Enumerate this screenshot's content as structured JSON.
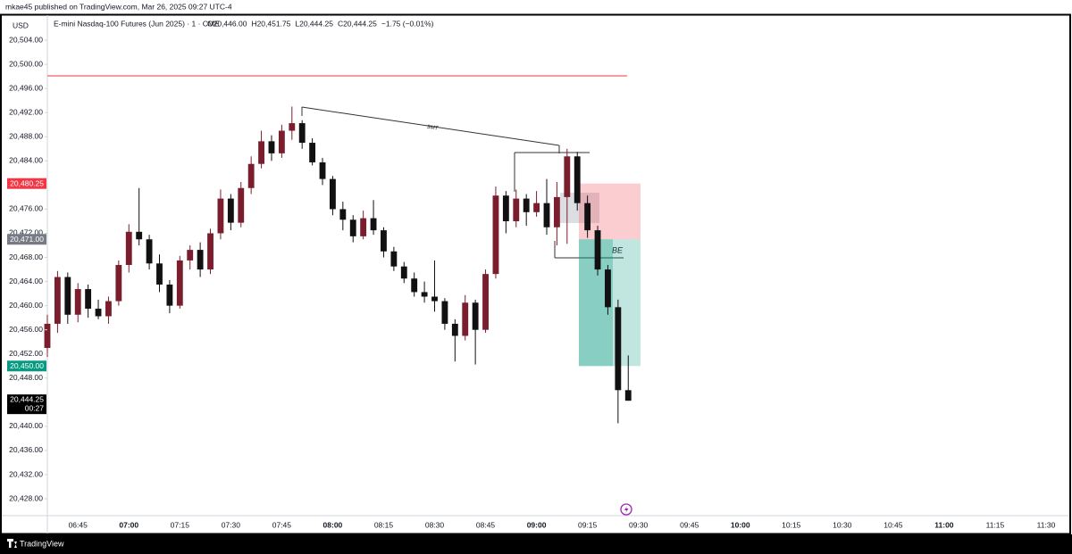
{
  "header": {
    "publisher": "mkae45 published on TradingView.com, Mar 26, 2025 09:27 UTC-4"
  },
  "chart_data": {
    "type": "candlestick",
    "title": "E-mini Nasdaq-100 Futures (Jun 2025) · 1 · CME",
    "legend_values": [
      "O20,446.00",
      "H20,451.75",
      "L20,444.25",
      "C20,444.25",
      "−1.75 (−0.01%)"
    ],
    "currency": "USD",
    "up_color": "#7a1e2e",
    "down_color": "#111111",
    "x": [
      "06:36",
      "06:39",
      "06:42",
      "06:45",
      "06:48",
      "06:51",
      "06:54",
      "06:57",
      "07:00",
      "07:03",
      "07:06",
      "07:09",
      "07:12",
      "07:15",
      "07:18",
      "07:21",
      "07:24",
      "07:27",
      "07:30",
      "07:33",
      "07:36",
      "07:39",
      "07:42",
      "07:45",
      "07:48",
      "07:51",
      "07:54",
      "07:57",
      "08:00",
      "08:03",
      "08:06",
      "08:09",
      "08:12",
      "08:15",
      "08:18",
      "08:21",
      "08:24",
      "08:27",
      "08:30",
      "08:33",
      "08:36",
      "08:39",
      "08:42",
      "08:45",
      "08:48",
      "08:51",
      "08:54",
      "08:57",
      "09:00",
      "09:03",
      "09:06",
      "09:09",
      "09:12",
      "09:15",
      "09:18",
      "09:21",
      "09:24",
      "09:27"
    ],
    "open": [
      20453.0,
      20457.0,
      20464.75,
      20458.5,
      20462.75,
      20459.5,
      20458.25,
      20460.75,
      20466.75,
      20472.25,
      20471.0,
      20467.0,
      20463.5,
      20460.0,
      20467.5,
      20469.25,
      20466.0,
      20472.0,
      20477.75,
      20473.75,
      20479.5,
      20483.5,
      20487.25,
      20485.25,
      20489.0,
      20490.25,
      20487.0,
      20483.75,
      20481.0,
      20476.0,
      20474.25,
      20471.5,
      20474.5,
      20472.5,
      20469.0,
      20466.5,
      20464.5,
      20462.25,
      20461.5,
      20460.75,
      20457.0,
      20455.0,
      20460.5,
      20456.0,
      20465.25,
      20478.25,
      20474.0,
      20477.75,
      20475.5,
      20477.0,
      20473.0,
      20478.0,
      20484.75,
      20477.0,
      20472.5,
      20466.0,
      20459.75,
      20446.0
    ],
    "high": [
      20458.5,
      20465.75,
      20465.5,
      20463.75,
      20463.5,
      20461.0,
      20461.5,
      20467.5,
      20473.5,
      20479.5,
      20471.75,
      20468.5,
      20464.25,
      20468.25,
      20470.0,
      20470.5,
      20472.75,
      20479.25,
      20478.5,
      20480.5,
      20484.75,
      20489.0,
      20488.25,
      20490.0,
      20493.0,
      20490.75,
      20487.75,
      20484.5,
      20481.5,
      20477.25,
      20475.0,
      20475.75,
      20477.5,
      20473.0,
      20469.75,
      20467.25,
      20465.5,
      20464.0,
      20467.5,
      20461.25,
      20457.75,
      20461.75,
      20461.0,
      20466.0,
      20479.75,
      20479.0,
      20479.25,
      20478.5,
      20479.0,
      20481.0,
      20480.5,
      20486.0,
      20485.5,
      20478.25,
      20473.25,
      20466.75,
      20461.0,
      20451.75
    ],
    "low": [
      20451.5,
      20455.5,
      20457.0,
      20457.25,
      20458.0,
      20457.75,
      20457.0,
      20460.0,
      20465.5,
      20470.0,
      20466.0,
      20462.25,
      20458.75,
      20459.5,
      20466.0,
      20464.75,
      20465.25,
      20471.0,
      20472.5,
      20473.0,
      20478.5,
      20482.75,
      20484.0,
      20484.5,
      20487.5,
      20486.0,
      20483.25,
      20480.0,
      20475.0,
      20472.5,
      20470.5,
      20471.0,
      20471.75,
      20468.0,
      20465.75,
      20463.75,
      20461.5,
      20460.5,
      20459.0,
      20456.0,
      20450.75,
      20454.25,
      20450.25,
      20455.5,
      20464.5,
      20472.0,
      20473.0,
      20473.25,
      20474.75,
      20471.75,
      20470.0,
      20470.25,
      20475.75,
      20471.25,
      20465.0,
      20458.5,
      20440.5,
      20444.25
    ],
    "close": [
      20457.0,
      20464.75,
      20458.5,
      20462.75,
      20459.5,
      20458.25,
      20460.75,
      20466.75,
      20472.25,
      20471.0,
      20467.0,
      20463.5,
      20460.0,
      20467.5,
      20469.25,
      20466.0,
      20472.0,
      20477.75,
      20473.75,
      20479.5,
      20483.5,
      20487.25,
      20485.25,
      20489.0,
      20490.25,
      20487.0,
      20483.75,
      20481.0,
      20476.0,
      20474.25,
      20471.5,
      20474.5,
      20472.5,
      20469.0,
      20466.5,
      20464.5,
      20462.25,
      20461.5,
      20460.75,
      20457.0,
      20455.0,
      20460.5,
      20456.0,
      20465.25,
      20478.25,
      20474.0,
      20477.75,
      20475.5,
      20477.0,
      20473.0,
      20478.0,
      20484.75,
      20477.0,
      20472.5,
      20466.0,
      20459.75,
      20446.0,
      20444.25
    ],
    "xlim": [
      "06:36",
      "11:35"
    ],
    "xticks": [
      "06:45",
      "07:00",
      "07:15",
      "07:30",
      "07:45",
      "08:00",
      "08:15",
      "08:30",
      "08:45",
      "09:00",
      "09:15",
      "09:30",
      "09:45",
      "10:00",
      "10:15",
      "10:30",
      "10:45",
      "11:00",
      "11:15",
      "11:30"
    ],
    "ylim": [
      20425.2,
      20508.3
    ],
    "yticks": [
      {
        "value": 20504,
        "label": "20,504.00"
      },
      {
        "value": 20500,
        "label": "20,500.00"
      },
      {
        "value": 20496,
        "label": "20,496.00"
      },
      {
        "value": 20492,
        "label": "20,492.00"
      },
      {
        "value": 20488,
        "label": "20,488.00"
      },
      {
        "value": 20484,
        "label": "20,484.00"
      },
      {
        "value": 20476,
        "label": "20,476.00"
      },
      {
        "value": 20472,
        "label": "20,472.00"
      },
      {
        "value": 20468,
        "label": "20,468.00"
      },
      {
        "value": 20464,
        "label": "20,464.00"
      },
      {
        "value": 20460,
        "label": "20,460.00"
      },
      {
        "value": 20456,
        "label": "20,456.00"
      },
      {
        "value": 20452,
        "label": "20,452.00"
      },
      {
        "value": 20448,
        "label": "20,448.00"
      },
      {
        "value": 20440,
        "label": "20,440.00"
      },
      {
        "value": 20436,
        "label": "20,436.00"
      },
      {
        "value": 20432,
        "label": "20,432.00"
      },
      {
        "value": 20428,
        "label": "20,428.00"
      }
    ],
    "position": {
      "stop": {
        "value": 20480.25,
        "label": "20,480.25"
      },
      "entry": {
        "value": 20471.0,
        "label": "20,471.00"
      },
      "target": {
        "value": 20450.0,
        "label": "20,450.00"
      }
    },
    "last_price": {
      "value": 20444.25,
      "label": "20,444.25"
    },
    "countdown": "00:27",
    "annotations": [
      "SMT",
      "BE"
    ],
    "grid": false
  },
  "footer": {
    "brand": "TradingView"
  }
}
